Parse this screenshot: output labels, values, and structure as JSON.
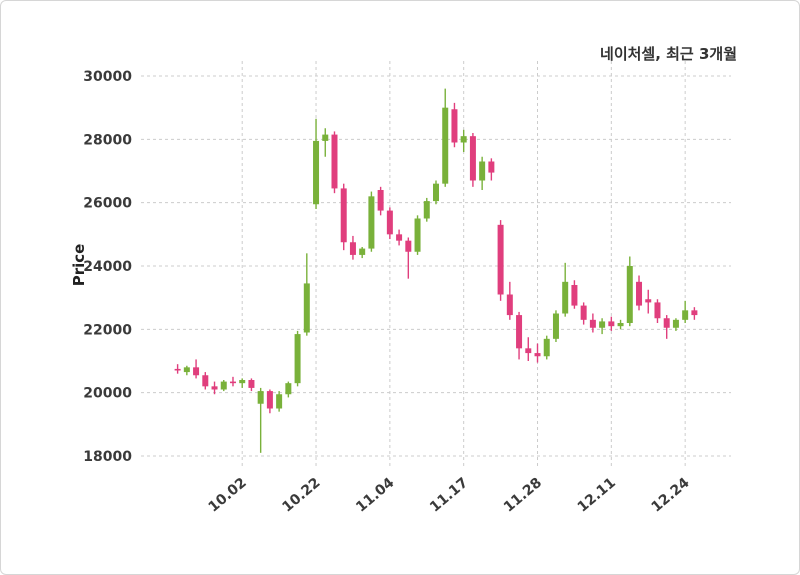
{
  "chart_data": {
    "type": "candlestick",
    "title": "네이처셀, 최근 3개월",
    "ylabel": "Price",
    "ylim": [
      18000,
      30000
    ],
    "y_ticks": [
      18000,
      20000,
      22000,
      24000,
      26000,
      28000,
      30000
    ],
    "x_ticks": [
      {
        "label": "10.02",
        "index": 7
      },
      {
        "label": "10.22",
        "index": 15
      },
      {
        "label": "11.04",
        "index": 23
      },
      {
        "label": "11.17",
        "index": 31
      },
      {
        "label": "11.28",
        "index": 39
      },
      {
        "label": "12.11",
        "index": 47
      },
      {
        "label": "12.24",
        "index": 55
      }
    ],
    "grid": "dashed",
    "legend": "none",
    "colors": {
      "up": "#79b13a",
      "down": "#e03e7d",
      "grid": "#cccccc",
      "tick_text": "#3a3a3a"
    },
    "candles_ohlc": [
      [
        20750,
        20900,
        20600,
        20700
      ],
      [
        20650,
        20850,
        20550,
        20800
      ],
      [
        20800,
        21050,
        20450,
        20550
      ],
      [
        20550,
        20650,
        20100,
        20200
      ],
      [
        20200,
        20350,
        19950,
        20100
      ],
      [
        20100,
        20400,
        20050,
        20350
      ],
      [
        20350,
        20500,
        20200,
        20300
      ],
      [
        20300,
        20450,
        20150,
        20400
      ],
      [
        20400,
        20450,
        20050,
        20150
      ],
      [
        19650,
        20150,
        18100,
        20050
      ],
      [
        20050,
        20100,
        19350,
        19500
      ],
      [
        19500,
        20050,
        19400,
        19950
      ],
      [
        19950,
        20350,
        19850,
        20300
      ],
      [
        20300,
        21950,
        20200,
        21850
      ],
      [
        21900,
        24400,
        21800,
        23450
      ],
      [
        25950,
        28650,
        25800,
        27950
      ],
      [
        27950,
        28350,
        27450,
        28150
      ],
      [
        28150,
        28250,
        26300,
        26450
      ],
      [
        26450,
        26600,
        24500,
        24750
      ],
      [
        24750,
        24950,
        24200,
        24350
      ],
      [
        24350,
        24600,
        24250,
        24550
      ],
      [
        24550,
        26350,
        24450,
        26200
      ],
      [
        26400,
        26500,
        25600,
        25750
      ],
      [
        25750,
        25850,
        24850,
        25000
      ],
      [
        25000,
        25150,
        24650,
        24800
      ],
      [
        24800,
        24900,
        23600,
        24450
      ],
      [
        24450,
        25600,
        24350,
        25500
      ],
      [
        25500,
        26150,
        25400,
        26050
      ],
      [
        26050,
        26700,
        25950,
        26600
      ],
      [
        26600,
        29600,
        26500,
        29000
      ],
      [
        28950,
        29150,
        27750,
        27900
      ],
      [
        27900,
        28300,
        27600,
        28100
      ],
      [
        28100,
        28200,
        26500,
        26700
      ],
      [
        26700,
        27450,
        26400,
        27300
      ],
      [
        27300,
        27400,
        26700,
        26950
      ],
      [
        25300,
        25450,
        22900,
        23100
      ],
      [
        23100,
        23500,
        22300,
        22450
      ],
      [
        22450,
        22550,
        21050,
        21400
      ],
      [
        21400,
        21750,
        21000,
        21250
      ],
      [
        21250,
        21550,
        20950,
        21150
      ],
      [
        21150,
        21800,
        21050,
        21700
      ],
      [
        21700,
        22600,
        21600,
        22500
      ],
      [
        22500,
        24100,
        22400,
        23500
      ],
      [
        23400,
        23550,
        22650,
        22750
      ],
      [
        22750,
        22850,
        22150,
        22300
      ],
      [
        22300,
        22500,
        21900,
        22050
      ],
      [
        22050,
        22350,
        21850,
        22250
      ],
      [
        22250,
        22400,
        21950,
        22100
      ],
      [
        22100,
        22300,
        22000,
        22200
      ],
      [
        22200,
        24300,
        22100,
        24000
      ],
      [
        23500,
        23700,
        22600,
        22750
      ],
      [
        22950,
        23250,
        22500,
        22850
      ],
      [
        22850,
        22950,
        22200,
        22350
      ],
      [
        22350,
        22450,
        21700,
        22050
      ],
      [
        22050,
        22350,
        21950,
        22300
      ],
      [
        22300,
        22900,
        22200,
        22600
      ],
      [
        22600,
        22700,
        22300,
        22450
      ]
    ]
  }
}
